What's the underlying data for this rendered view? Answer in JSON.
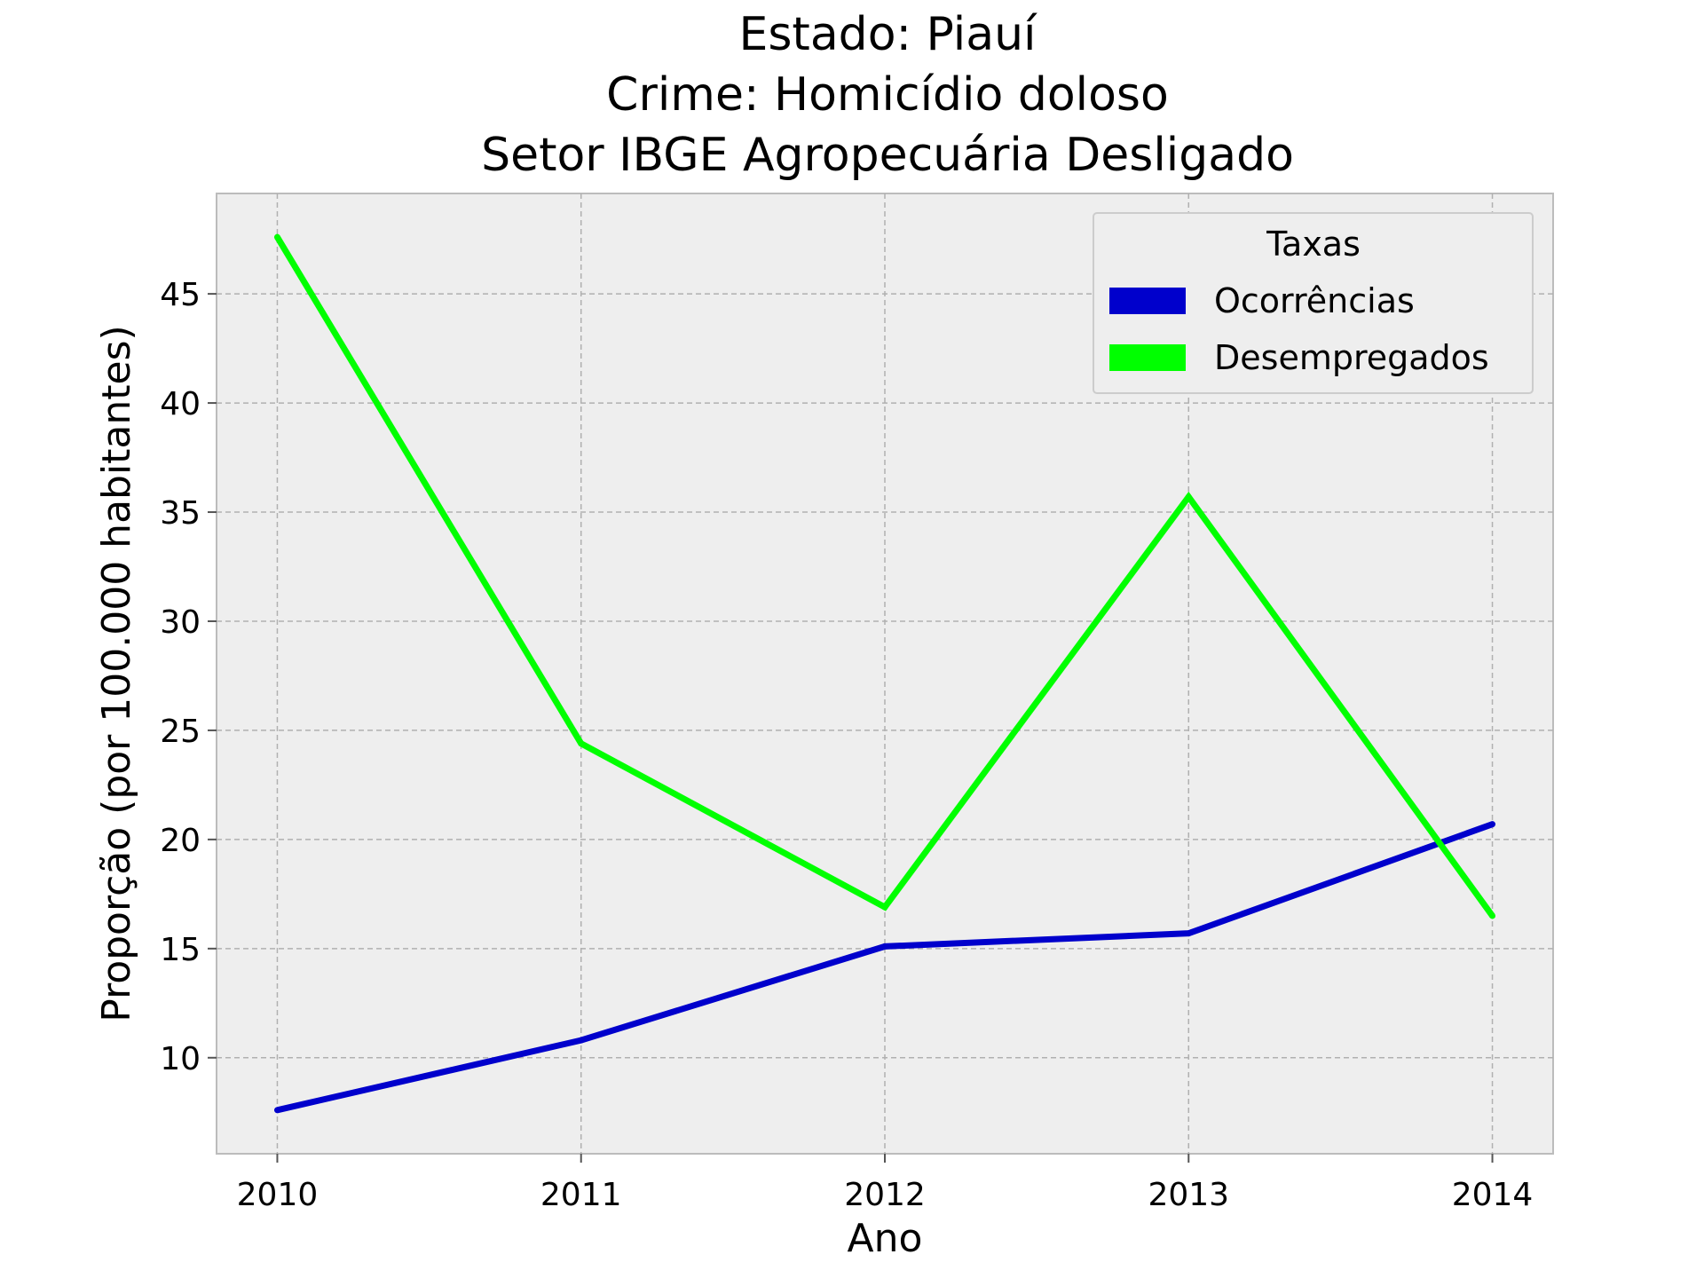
{
  "chart_data": {
    "type": "line",
    "title_lines": [
      "Estado: Piauí",
      "Crime: Homicídio doloso",
      "Setor IBGE  Agropecuária   Desligado"
    ],
    "xlabel": "Ano",
    "ylabel": "Proporção (por 100.000 habitantes)",
    "x": [
      2010,
      2011,
      2012,
      2013,
      2014
    ],
    "xticks": [
      "2010",
      "2011",
      "2012",
      "2013",
      "2014"
    ],
    "yticks": [
      "10",
      "15",
      "20",
      "25",
      "30",
      "35",
      "40",
      "45"
    ],
    "xlim": [
      2009.8,
      2014.2
    ],
    "ylim": [
      5.6,
      49.6
    ],
    "grid": true,
    "legend": {
      "title": "Taxas",
      "placement": "upper right"
    },
    "series": [
      {
        "name": "Ocorrências",
        "color": "#0000cc",
        "values": [
          7.6,
          10.8,
          15.1,
          15.7,
          20.7
        ]
      },
      {
        "name": "Desempregados",
        "color": "#00ff00",
        "values": [
          47.6,
          24.4,
          16.9,
          35.7,
          16.5
        ]
      }
    ]
  }
}
